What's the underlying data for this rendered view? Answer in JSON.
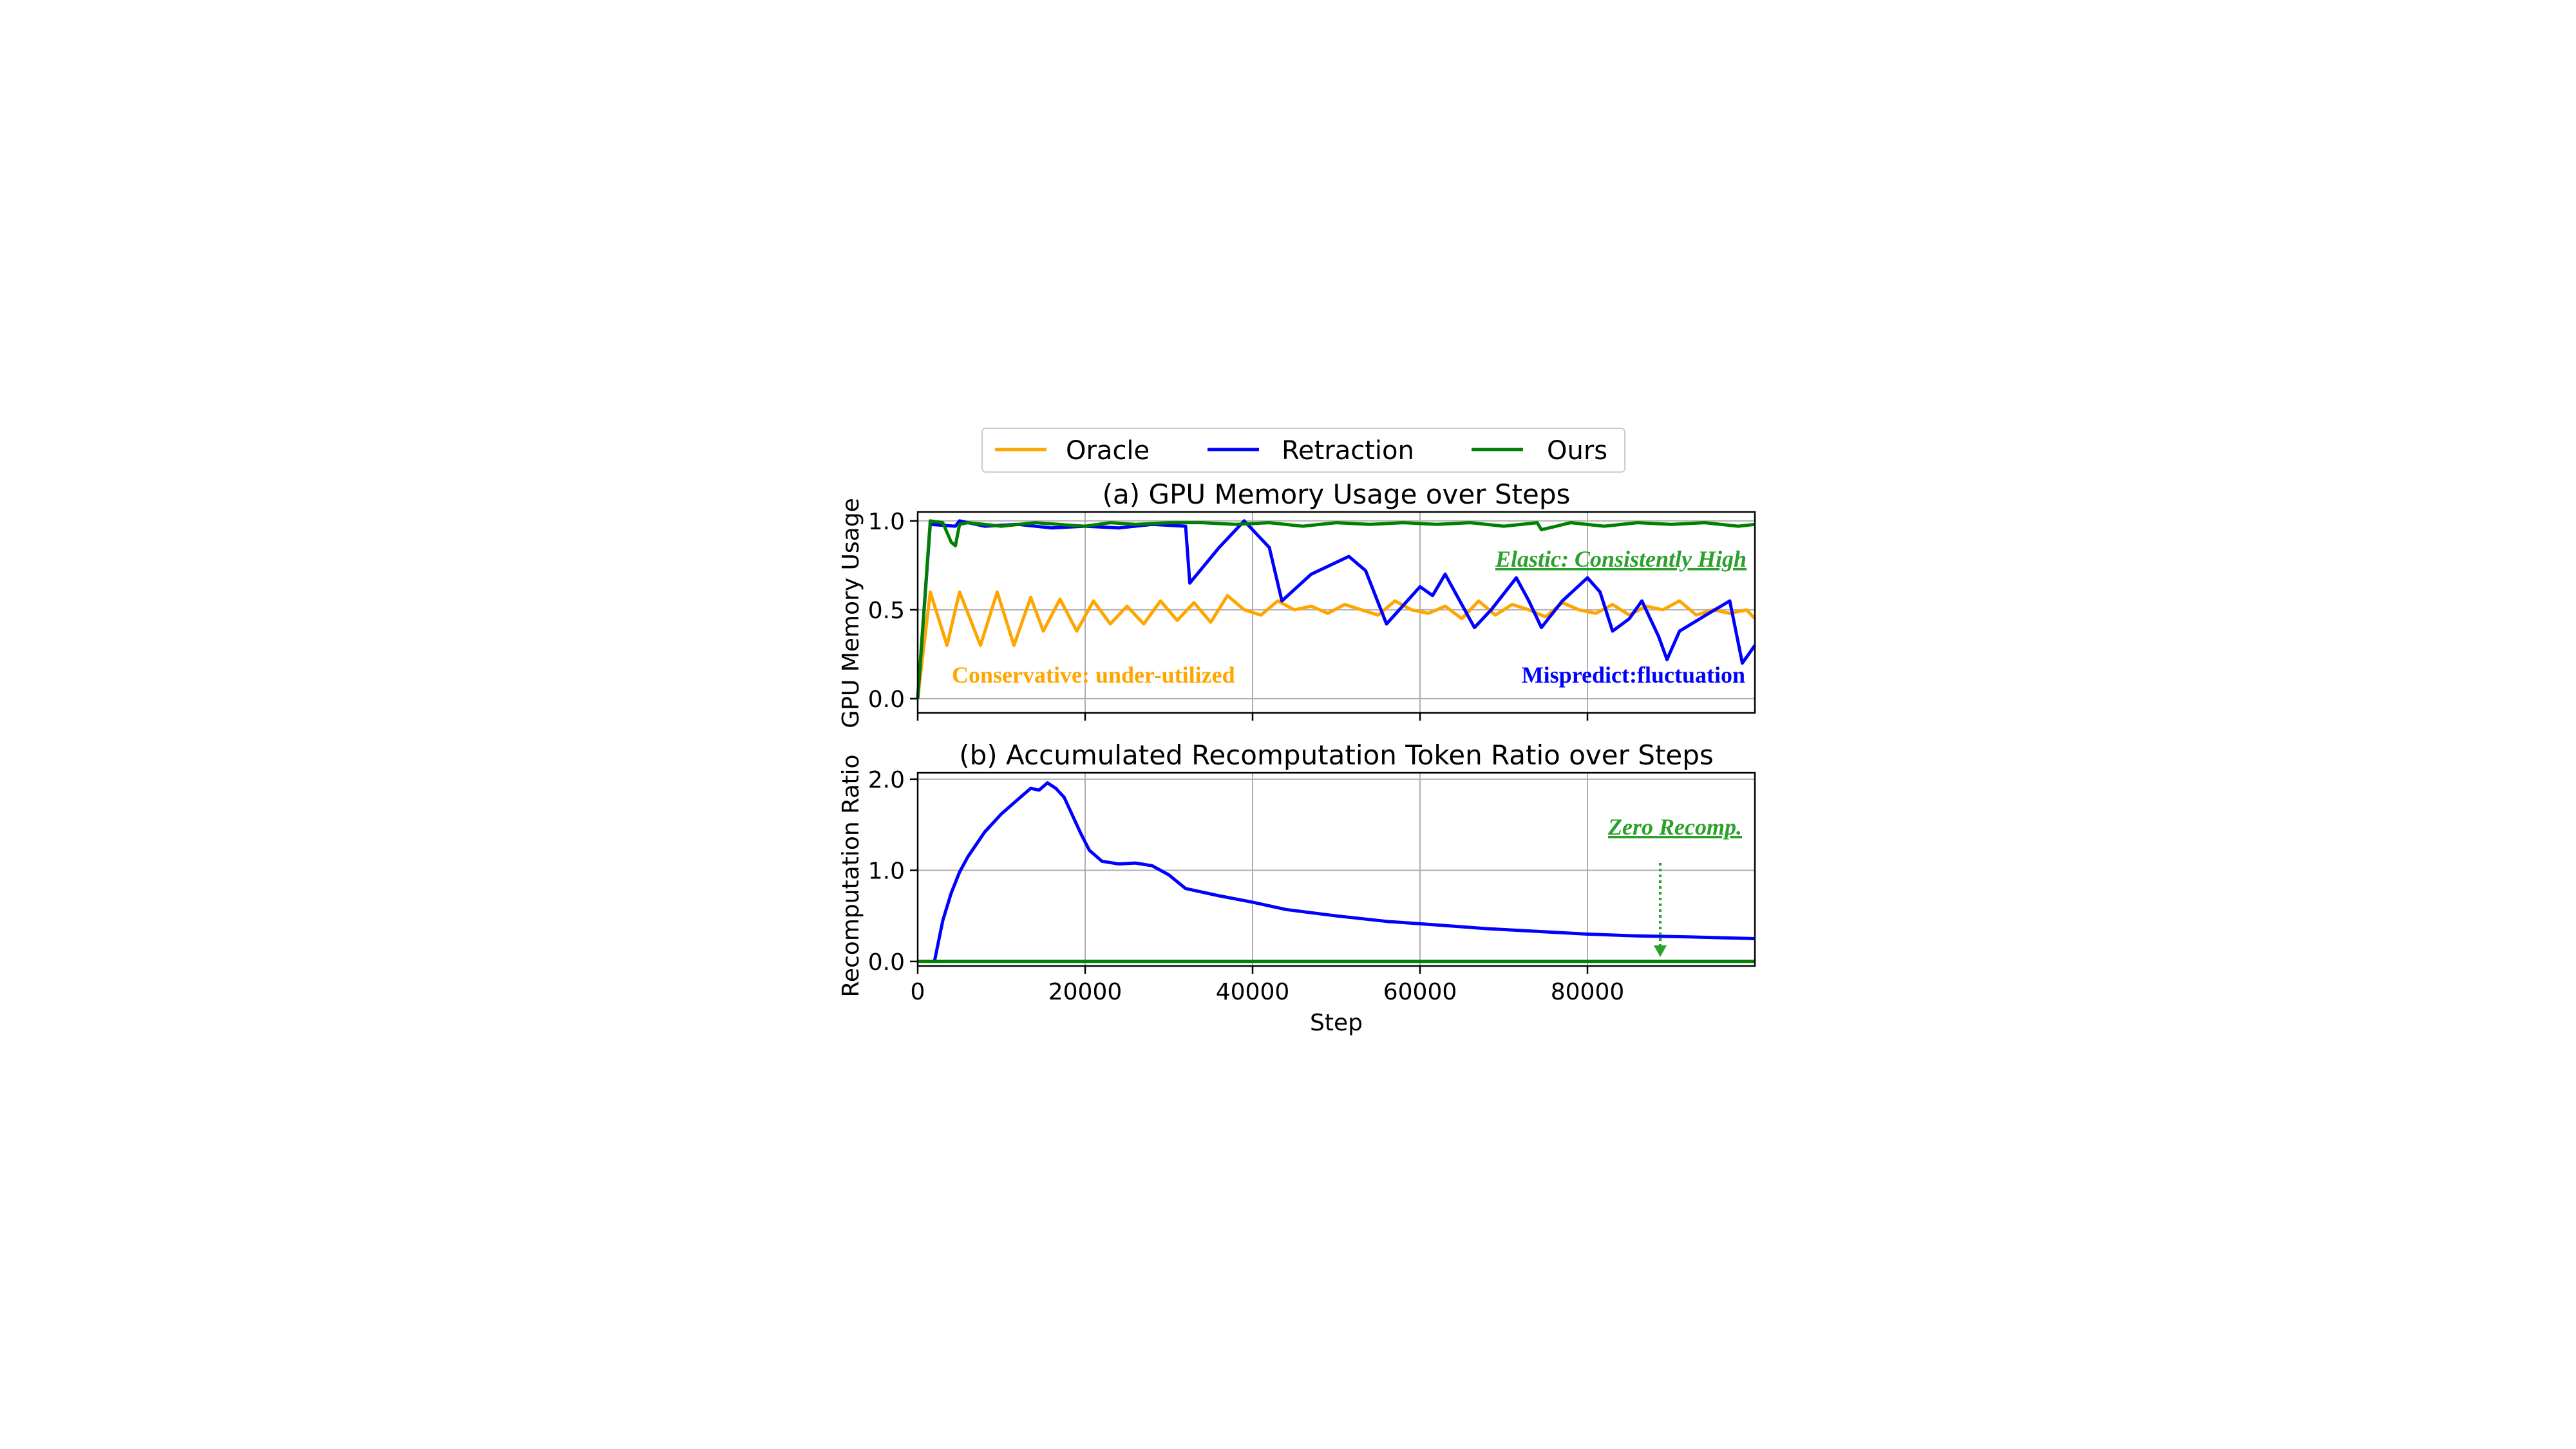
{
  "legend": {
    "placement": "top-center",
    "entries": [
      {
        "label": "Oracle",
        "color": "#FFA500"
      },
      {
        "label": "Retraction",
        "color": "#0000FF"
      },
      {
        "label": "Ours",
        "color": "#008000"
      }
    ]
  },
  "chart_data": [
    {
      "type": "line",
      "title": "(a) GPU Memory Usage over Steps",
      "xlabel": "",
      "ylabel": "GPU Memory Usage",
      "xlim": [
        0,
        100000
      ],
      "ylim": [
        -0.08,
        1.05
      ],
      "xticks": [
        0,
        20000,
        40000,
        60000,
        80000
      ],
      "yticks": [
        0.0,
        0.5,
        1.0
      ],
      "ytick_labels": [
        "0.0",
        "0.5",
        "1.0"
      ],
      "grid": true,
      "annotations": [
        {
          "text": "Elastic: Consistently High",
          "color": "#2CA02C",
          "italic": true,
          "underline": true
        },
        {
          "text": "Conservative: under-utilized",
          "color": "#FFA500"
        },
        {
          "text": "Mispredict:fluctuation",
          "color": "#0000FF"
        }
      ],
      "series": [
        {
          "name": "Oracle",
          "color": "#FFA500",
          "x": [
            0,
            1500,
            3500,
            5000,
            7500,
            9500,
            11500,
            13500,
            15000,
            17000,
            19000,
            21000,
            23000,
            25000,
            27000,
            29000,
            31000,
            33000,
            35000,
            37000,
            39000,
            41000,
            43000,
            45000,
            47000,
            49000,
            51000,
            53000,
            55000,
            57000,
            59000,
            61000,
            63000,
            65000,
            67000,
            69000,
            71000,
            73000,
            75000,
            77000,
            79000,
            81000,
            83000,
            85000,
            87000,
            89000,
            91000,
            93000,
            95000,
            97000,
            99000,
            100000
          ],
          "y": [
            0.0,
            0.6,
            0.3,
            0.6,
            0.3,
            0.6,
            0.3,
            0.57,
            0.38,
            0.56,
            0.38,
            0.55,
            0.42,
            0.52,
            0.42,
            0.55,
            0.44,
            0.54,
            0.43,
            0.58,
            0.5,
            0.47,
            0.55,
            0.5,
            0.52,
            0.48,
            0.53,
            0.5,
            0.47,
            0.55,
            0.5,
            0.48,
            0.52,
            0.45,
            0.55,
            0.47,
            0.53,
            0.5,
            0.46,
            0.54,
            0.5,
            0.48,
            0.53,
            0.47,
            0.52,
            0.5,
            0.55,
            0.47,
            0.5,
            0.48,
            0.5,
            0.45
          ]
        },
        {
          "name": "Retraction",
          "color": "#0000FF",
          "x": [
            0,
            1500,
            4500,
            5000,
            8000,
            12000,
            16000,
            20000,
            24000,
            28000,
            32000,
            32500,
            36000,
            39000,
            42000,
            43500,
            47000,
            51500,
            53500,
            56000,
            60000,
            61500,
            63000,
            66500,
            68500,
            71500,
            73000,
            74500,
            77000,
            80000,
            81500,
            83000,
            85000,
            86500,
            88500,
            89500,
            91000,
            94500,
            97000,
            98500,
            100000
          ],
          "y": [
            0.0,
            0.98,
            0.97,
            1.0,
            0.97,
            0.98,
            0.96,
            0.97,
            0.96,
            0.98,
            0.97,
            0.65,
            0.85,
            1.0,
            0.85,
            0.55,
            0.7,
            0.8,
            0.72,
            0.42,
            0.63,
            0.58,
            0.7,
            0.4,
            0.5,
            0.68,
            0.55,
            0.4,
            0.55,
            0.68,
            0.6,
            0.38,
            0.45,
            0.55,
            0.35,
            0.22,
            0.38,
            0.48,
            0.55,
            0.2,
            0.3
          ]
        },
        {
          "name": "Ours",
          "color": "#008000",
          "x": [
            0,
            1500,
            3000,
            4000,
            4500,
            5000,
            6000,
            10000,
            14000,
            20000,
            23000,
            26000,
            30000,
            34000,
            38000,
            42000,
            46000,
            50000,
            54000,
            58000,
            62000,
            66000,
            70000,
            74000,
            74500,
            78000,
            82000,
            86000,
            90000,
            94000,
            98000,
            100000
          ],
          "y": [
            0.0,
            1.0,
            0.99,
            0.88,
            0.86,
            0.98,
            0.99,
            0.97,
            0.99,
            0.97,
            0.99,
            0.98,
            0.99,
            0.99,
            0.98,
            0.99,
            0.97,
            0.99,
            0.98,
            0.99,
            0.98,
            0.99,
            0.97,
            0.99,
            0.95,
            0.99,
            0.97,
            0.99,
            0.98,
            0.99,
            0.97,
            0.98
          ]
        }
      ]
    },
    {
      "type": "line",
      "title": "(b) Accumulated Recomputation Token Ratio over Steps",
      "xlabel": "Step",
      "ylabel": "Recomputation Ratio",
      "xlim": [
        0,
        100000
      ],
      "ylim": [
        -0.05,
        2.07
      ],
      "xticks": [
        0,
        20000,
        40000,
        60000,
        80000
      ],
      "xtick_labels": [
        "0",
        "20000",
        "40000",
        "60000",
        "80000"
      ],
      "yticks": [
        0.0,
        1.0,
        2.0
      ],
      "ytick_labels": [
        "0.0",
        "1.0",
        "2.0"
      ],
      "grid": true,
      "annotations": [
        {
          "text": "Zero Recomp.",
          "color": "#2CA02C",
          "italic": true,
          "underline": true,
          "arrow_to": [
            88000,
            0.1
          ]
        }
      ],
      "series": [
        {
          "name": "Retraction",
          "color": "#0000FF",
          "x": [
            2000,
            3000,
            4000,
            5000,
            6000,
            8000,
            10000,
            12000,
            13500,
            14500,
            15500,
            16500,
            17500,
            18500,
            19500,
            20500,
            22000,
            24000,
            26000,
            28000,
            30000,
            32000,
            36000,
            40000,
            44000,
            50000,
            56000,
            62000,
            68000,
            74000,
            80000,
            86000,
            92000,
            100000
          ],
          "y": [
            0.0,
            0.45,
            0.75,
            0.98,
            1.15,
            1.42,
            1.62,
            1.78,
            1.9,
            1.88,
            1.96,
            1.9,
            1.8,
            1.6,
            1.4,
            1.22,
            1.1,
            1.07,
            1.08,
            1.05,
            0.95,
            0.8,
            0.72,
            0.65,
            0.57,
            0.5,
            0.44,
            0.4,
            0.36,
            0.33,
            0.3,
            0.28,
            0.27,
            0.25
          ]
        },
        {
          "name": "Ours",
          "color": "#008000",
          "x": [
            0,
            100000
          ],
          "y": [
            0.0,
            0.0
          ]
        }
      ]
    }
  ]
}
